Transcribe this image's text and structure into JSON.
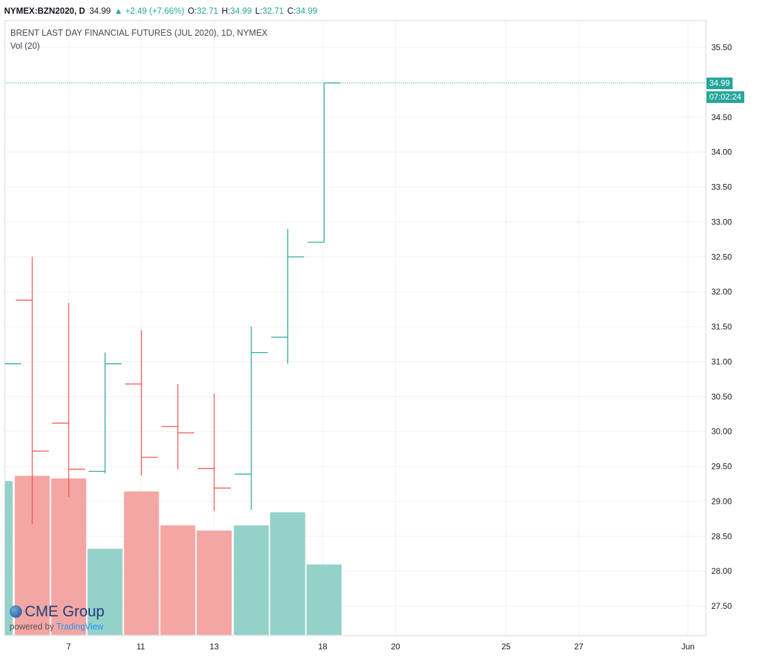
{
  "header": {
    "symbol": "NYMEX:BZN2020, D",
    "last": "34.99",
    "change": "▲ +2.49 (+7.66%)",
    "o_label": "O:",
    "o_value": "32.71",
    "h_label": "H:",
    "h_value": "34.99",
    "l_label": "L:",
    "l_value": "32.71",
    "c_label": "C:",
    "c_value": "34.99"
  },
  "legend": {
    "title": "BRENT LAST DAY FINANCIAL FUTURES (JUL 2020), 1D, NYMEX",
    "volume": "Vol (20)"
  },
  "price_tag": {
    "price": "34.99",
    "countdown": "07:02:24"
  },
  "logo": {
    "brand": "CME Group",
    "powered": "powered by",
    "tradingview": "TradingView"
  },
  "colors": {
    "up": "#26a69a",
    "down": "#ef5350",
    "vol_up": "#93d1c9",
    "vol_down": "#f4a6a4"
  },
  "chart_data": {
    "type": "ohlc",
    "y_ticks": [
      "35.50",
      "35.00",
      "34.50",
      "34.00",
      "33.50",
      "33.00",
      "32.50",
      "32.00",
      "31.50",
      "31.00",
      "30.50",
      "30.00",
      "29.50",
      "29.00",
      "28.50",
      "28.00",
      "27.50"
    ],
    "x_ticks": [
      "7",
      "11",
      "13",
      "18",
      "20",
      "25",
      "27",
      "Jun"
    ],
    "ylim": [
      27.1,
      35.9
    ],
    "last_price_line": 34.99,
    "bars": [
      {
        "date": "May 5",
        "open": 30.97,
        "high": 30.97,
        "low": 30.97,
        "close": 30.97,
        "dir": "up",
        "volume": 0.59
      },
      {
        "date": "May 6",
        "open": 31.88,
        "high": 32.5,
        "low": 28.67,
        "close": 29.72,
        "dir": "down",
        "volume": 0.61
      },
      {
        "date": "May 7",
        "open": 30.12,
        "high": 31.84,
        "low": 29.06,
        "close": 29.46,
        "dir": "down",
        "volume": 0.6
      },
      {
        "date": "May 8",
        "open": 29.43,
        "high": 31.13,
        "low": 29.4,
        "close": 30.97,
        "dir": "up",
        "volume": 0.33
      },
      {
        "date": "May 11",
        "open": 30.68,
        "high": 31.45,
        "low": 29.37,
        "close": 29.63,
        "dir": "down",
        "volume": 0.55
      },
      {
        "date": "May 12",
        "open": 30.07,
        "high": 30.68,
        "low": 29.46,
        "close": 29.98,
        "dir": "down",
        "volume": 0.42
      },
      {
        "date": "May 13",
        "open": 29.47,
        "high": 30.54,
        "low": 28.86,
        "close": 29.19,
        "dir": "down",
        "volume": 0.4
      },
      {
        "date": "May 14",
        "open": 29.39,
        "high": 31.5,
        "low": 28.88,
        "close": 31.13,
        "dir": "up",
        "volume": 0.42
      },
      {
        "date": "May 15",
        "open": 31.35,
        "high": 32.9,
        "low": 30.97,
        "close": 32.5,
        "dir": "up",
        "volume": 0.47
      },
      {
        "date": "May 18",
        "open": 32.71,
        "high": 34.99,
        "low": 32.71,
        "close": 34.99,
        "dir": "up",
        "volume": 0.27
      }
    ]
  }
}
